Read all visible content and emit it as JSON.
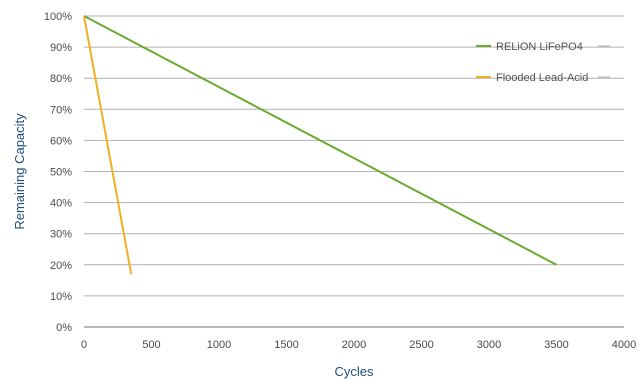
{
  "chart_data": {
    "type": "line",
    "xlabel": "Cycles",
    "ylabel": "Remaining Capacity",
    "xlim": [
      0,
      4000
    ],
    "ylim": [
      0,
      100
    ],
    "x_ticks": [
      0,
      500,
      1000,
      1500,
      2000,
      2500,
      3000,
      3500,
      4000
    ],
    "x_tick_labels": [
      "0",
      "500",
      "1000",
      "1500",
      "2000",
      "2500",
      "3000",
      "3500",
      "4000"
    ],
    "y_ticks": [
      0,
      10,
      20,
      30,
      40,
      50,
      60,
      70,
      80,
      90,
      100
    ],
    "y_tick_labels": [
      "0%",
      "10%",
      "20%",
      "30%",
      "40%",
      "50%",
      "60%",
      "70%",
      "80%",
      "90%",
      "100%"
    ],
    "grid": "horizontal",
    "legend_position": "top-right",
    "series": [
      {
        "name": "RELiON LiFePO4",
        "color": "#6aaa2e",
        "x": [
          0,
          3500
        ],
        "y": [
          100,
          20
        ]
      },
      {
        "name": "Flooded Lead-Acid",
        "color": "#f0b020",
        "x": [
          0,
          350
        ],
        "y": [
          100,
          17
        ]
      }
    ]
  }
}
